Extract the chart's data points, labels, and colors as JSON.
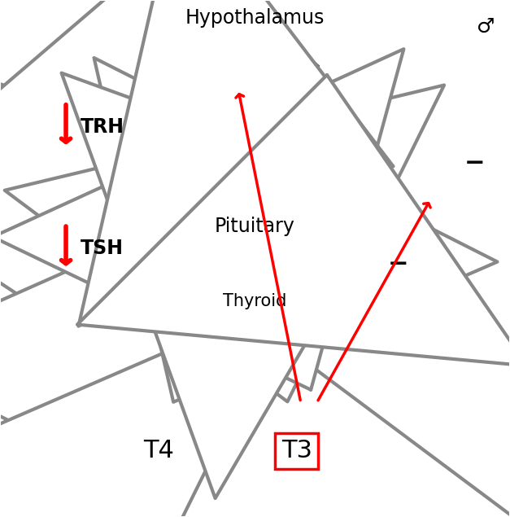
{
  "bg_color": "#ffffff",
  "hypothalamus_label": "Hypothalamus",
  "pituitary_label": "Pituitary",
  "thyroid_label": "Thyroid",
  "t4_label": "T4",
  "t3_label": "T3",
  "t3_box_color": "#ff0000",
  "trh_label": "TRH",
  "tsh_label": "TSH",
  "arrow_gray": "#888888",
  "red_color": "#ff0000",
  "shape_dark_gray": "#5a5a5a",
  "thyroid_light_gray": "#bebebe",
  "font_size_label": 17,
  "font_size_small": 15,
  "font_size_t4t3": 22,
  "font_size_minus": 22
}
